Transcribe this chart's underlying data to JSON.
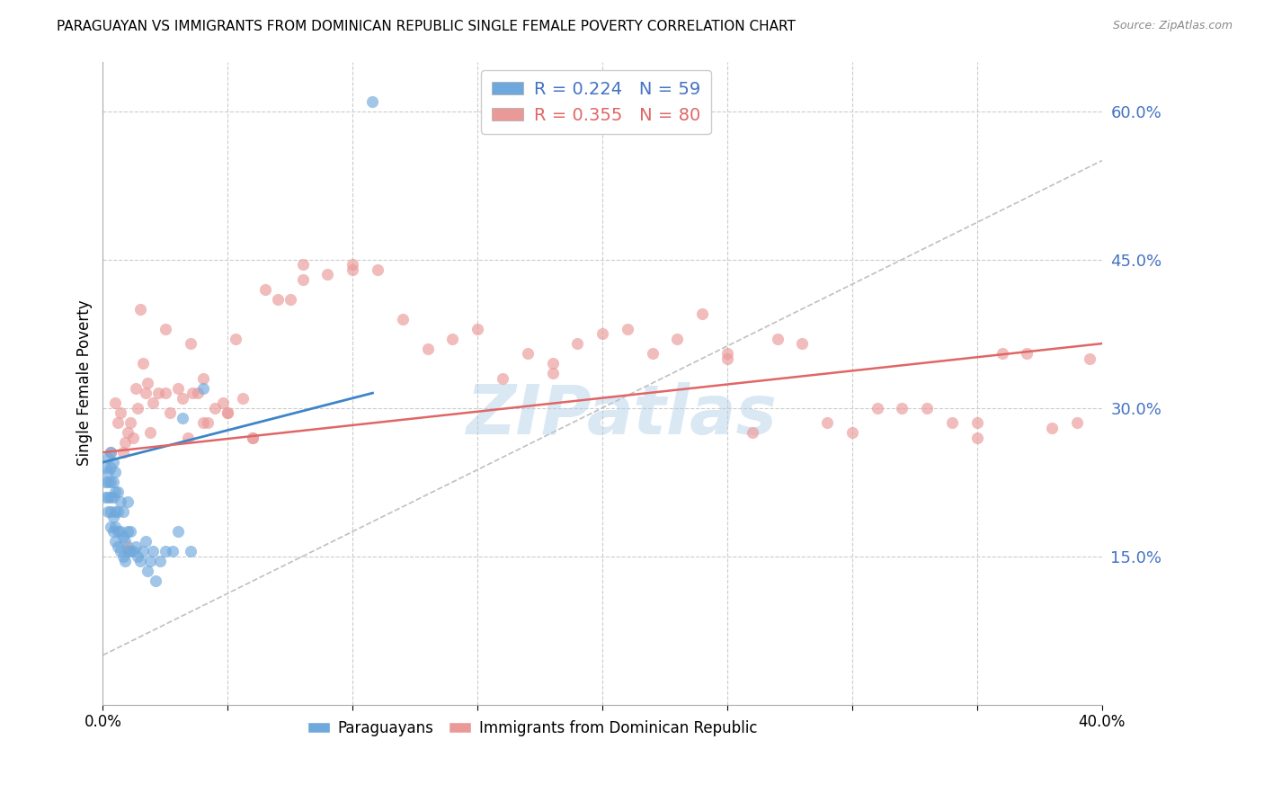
{
  "title": "PARAGUAYAN VS IMMIGRANTS FROM DOMINICAN REPUBLIC SINGLE FEMALE POVERTY CORRELATION CHART",
  "source": "Source: ZipAtlas.com",
  "ylabel": "Single Female Poverty",
  "xlim": [
    0.0,
    0.4
  ],
  "ylim": [
    0.0,
    0.65
  ],
  "xticks": [
    0.0,
    0.05,
    0.1,
    0.15,
    0.2,
    0.25,
    0.3,
    0.35,
    0.4
  ],
  "xticklabels": [
    "0.0%",
    "",
    "",
    "",
    "",
    "",
    "",
    "",
    "40.0%"
  ],
  "yticks_right": [
    0.15,
    0.3,
    0.45,
    0.6
  ],
  "ytick_labels_right": [
    "15.0%",
    "30.0%",
    "45.0%",
    "60.0%"
  ],
  "hlines": [
    0.15,
    0.3,
    0.45,
    0.6
  ],
  "vlines": [
    0.05,
    0.1,
    0.15,
    0.2,
    0.25,
    0.3,
    0.35
  ],
  "blue_color": "#6fa8dc",
  "pink_color": "#ea9999",
  "blue_scatter_alpha": 0.65,
  "pink_scatter_alpha": 0.65,
  "scatter_size": 90,
  "legend_R1": "R = 0.224",
  "legend_N1": "N = 59",
  "legend_R2": "R = 0.355",
  "legend_N2": "N = 80",
  "legend_label1": "Paraguayans",
  "legend_label2": "Immigrants from Dominican Republic",
  "blue_line_color": "#3d85c8",
  "pink_line_color": "#e06666",
  "ref_line_color": "#c0c0c0",
  "watermark": "ZIPatlas",
  "blue_points_x": [
    0.001,
    0.001,
    0.001,
    0.002,
    0.002,
    0.002,
    0.002,
    0.002,
    0.003,
    0.003,
    0.003,
    0.003,
    0.003,
    0.003,
    0.004,
    0.004,
    0.004,
    0.004,
    0.004,
    0.005,
    0.005,
    0.005,
    0.005,
    0.005,
    0.006,
    0.006,
    0.006,
    0.006,
    0.007,
    0.007,
    0.007,
    0.008,
    0.008,
    0.008,
    0.009,
    0.009,
    0.01,
    0.01,
    0.01,
    0.011,
    0.011,
    0.012,
    0.013,
    0.014,
    0.015,
    0.016,
    0.017,
    0.018,
    0.019,
    0.02,
    0.021,
    0.023,
    0.025,
    0.028,
    0.03,
    0.032,
    0.035,
    0.04,
    0.108
  ],
  "blue_points_y": [
    0.21,
    0.225,
    0.24,
    0.195,
    0.21,
    0.225,
    0.235,
    0.25,
    0.18,
    0.195,
    0.21,
    0.225,
    0.24,
    0.255,
    0.175,
    0.19,
    0.21,
    0.225,
    0.245,
    0.165,
    0.18,
    0.195,
    0.215,
    0.235,
    0.16,
    0.175,
    0.195,
    0.215,
    0.155,
    0.175,
    0.205,
    0.15,
    0.17,
    0.195,
    0.145,
    0.165,
    0.155,
    0.175,
    0.205,
    0.155,
    0.175,
    0.155,
    0.16,
    0.15,
    0.145,
    0.155,
    0.165,
    0.135,
    0.145,
    0.155,
    0.125,
    0.145,
    0.155,
    0.155,
    0.175,
    0.29,
    0.155,
    0.32,
    0.61
  ],
  "pink_points_x": [
    0.003,
    0.005,
    0.006,
    0.007,
    0.008,
    0.009,
    0.01,
    0.011,
    0.012,
    0.013,
    0.014,
    0.015,
    0.016,
    0.017,
    0.018,
    0.019,
    0.02,
    0.022,
    0.025,
    0.027,
    0.03,
    0.032,
    0.034,
    0.036,
    0.038,
    0.04,
    0.042,
    0.045,
    0.048,
    0.05,
    0.053,
    0.056,
    0.06,
    0.065,
    0.07,
    0.075,
    0.08,
    0.09,
    0.1,
    0.11,
    0.12,
    0.13,
    0.14,
    0.15,
    0.16,
    0.17,
    0.18,
    0.19,
    0.2,
    0.21,
    0.22,
    0.23,
    0.24,
    0.25,
    0.26,
    0.27,
    0.28,
    0.29,
    0.3,
    0.31,
    0.32,
    0.33,
    0.34,
    0.35,
    0.36,
    0.37,
    0.38,
    0.39,
    0.025,
    0.035,
    0.04,
    0.05,
    0.06,
    0.08,
    0.1,
    0.18,
    0.25,
    0.35,
    0.395,
    0.01
  ],
  "pink_points_y": [
    0.255,
    0.305,
    0.285,
    0.295,
    0.255,
    0.265,
    0.275,
    0.285,
    0.27,
    0.32,
    0.3,
    0.4,
    0.345,
    0.315,
    0.325,
    0.275,
    0.305,
    0.315,
    0.315,
    0.295,
    0.32,
    0.31,
    0.27,
    0.315,
    0.315,
    0.33,
    0.285,
    0.3,
    0.305,
    0.295,
    0.37,
    0.31,
    0.27,
    0.42,
    0.41,
    0.41,
    0.43,
    0.435,
    0.44,
    0.44,
    0.39,
    0.36,
    0.37,
    0.38,
    0.33,
    0.355,
    0.345,
    0.365,
    0.375,
    0.38,
    0.355,
    0.37,
    0.395,
    0.35,
    0.275,
    0.37,
    0.365,
    0.285,
    0.275,
    0.3,
    0.3,
    0.3,
    0.285,
    0.27,
    0.355,
    0.355,
    0.28,
    0.285,
    0.38,
    0.365,
    0.285,
    0.295,
    0.27,
    0.445,
    0.445,
    0.335,
    0.355,
    0.285,
    0.35,
    0.16
  ],
  "blue_trend": [
    0.0,
    0.108,
    0.245,
    0.315
  ],
  "pink_trend": [
    0.0,
    0.4,
    0.255,
    0.365
  ]
}
